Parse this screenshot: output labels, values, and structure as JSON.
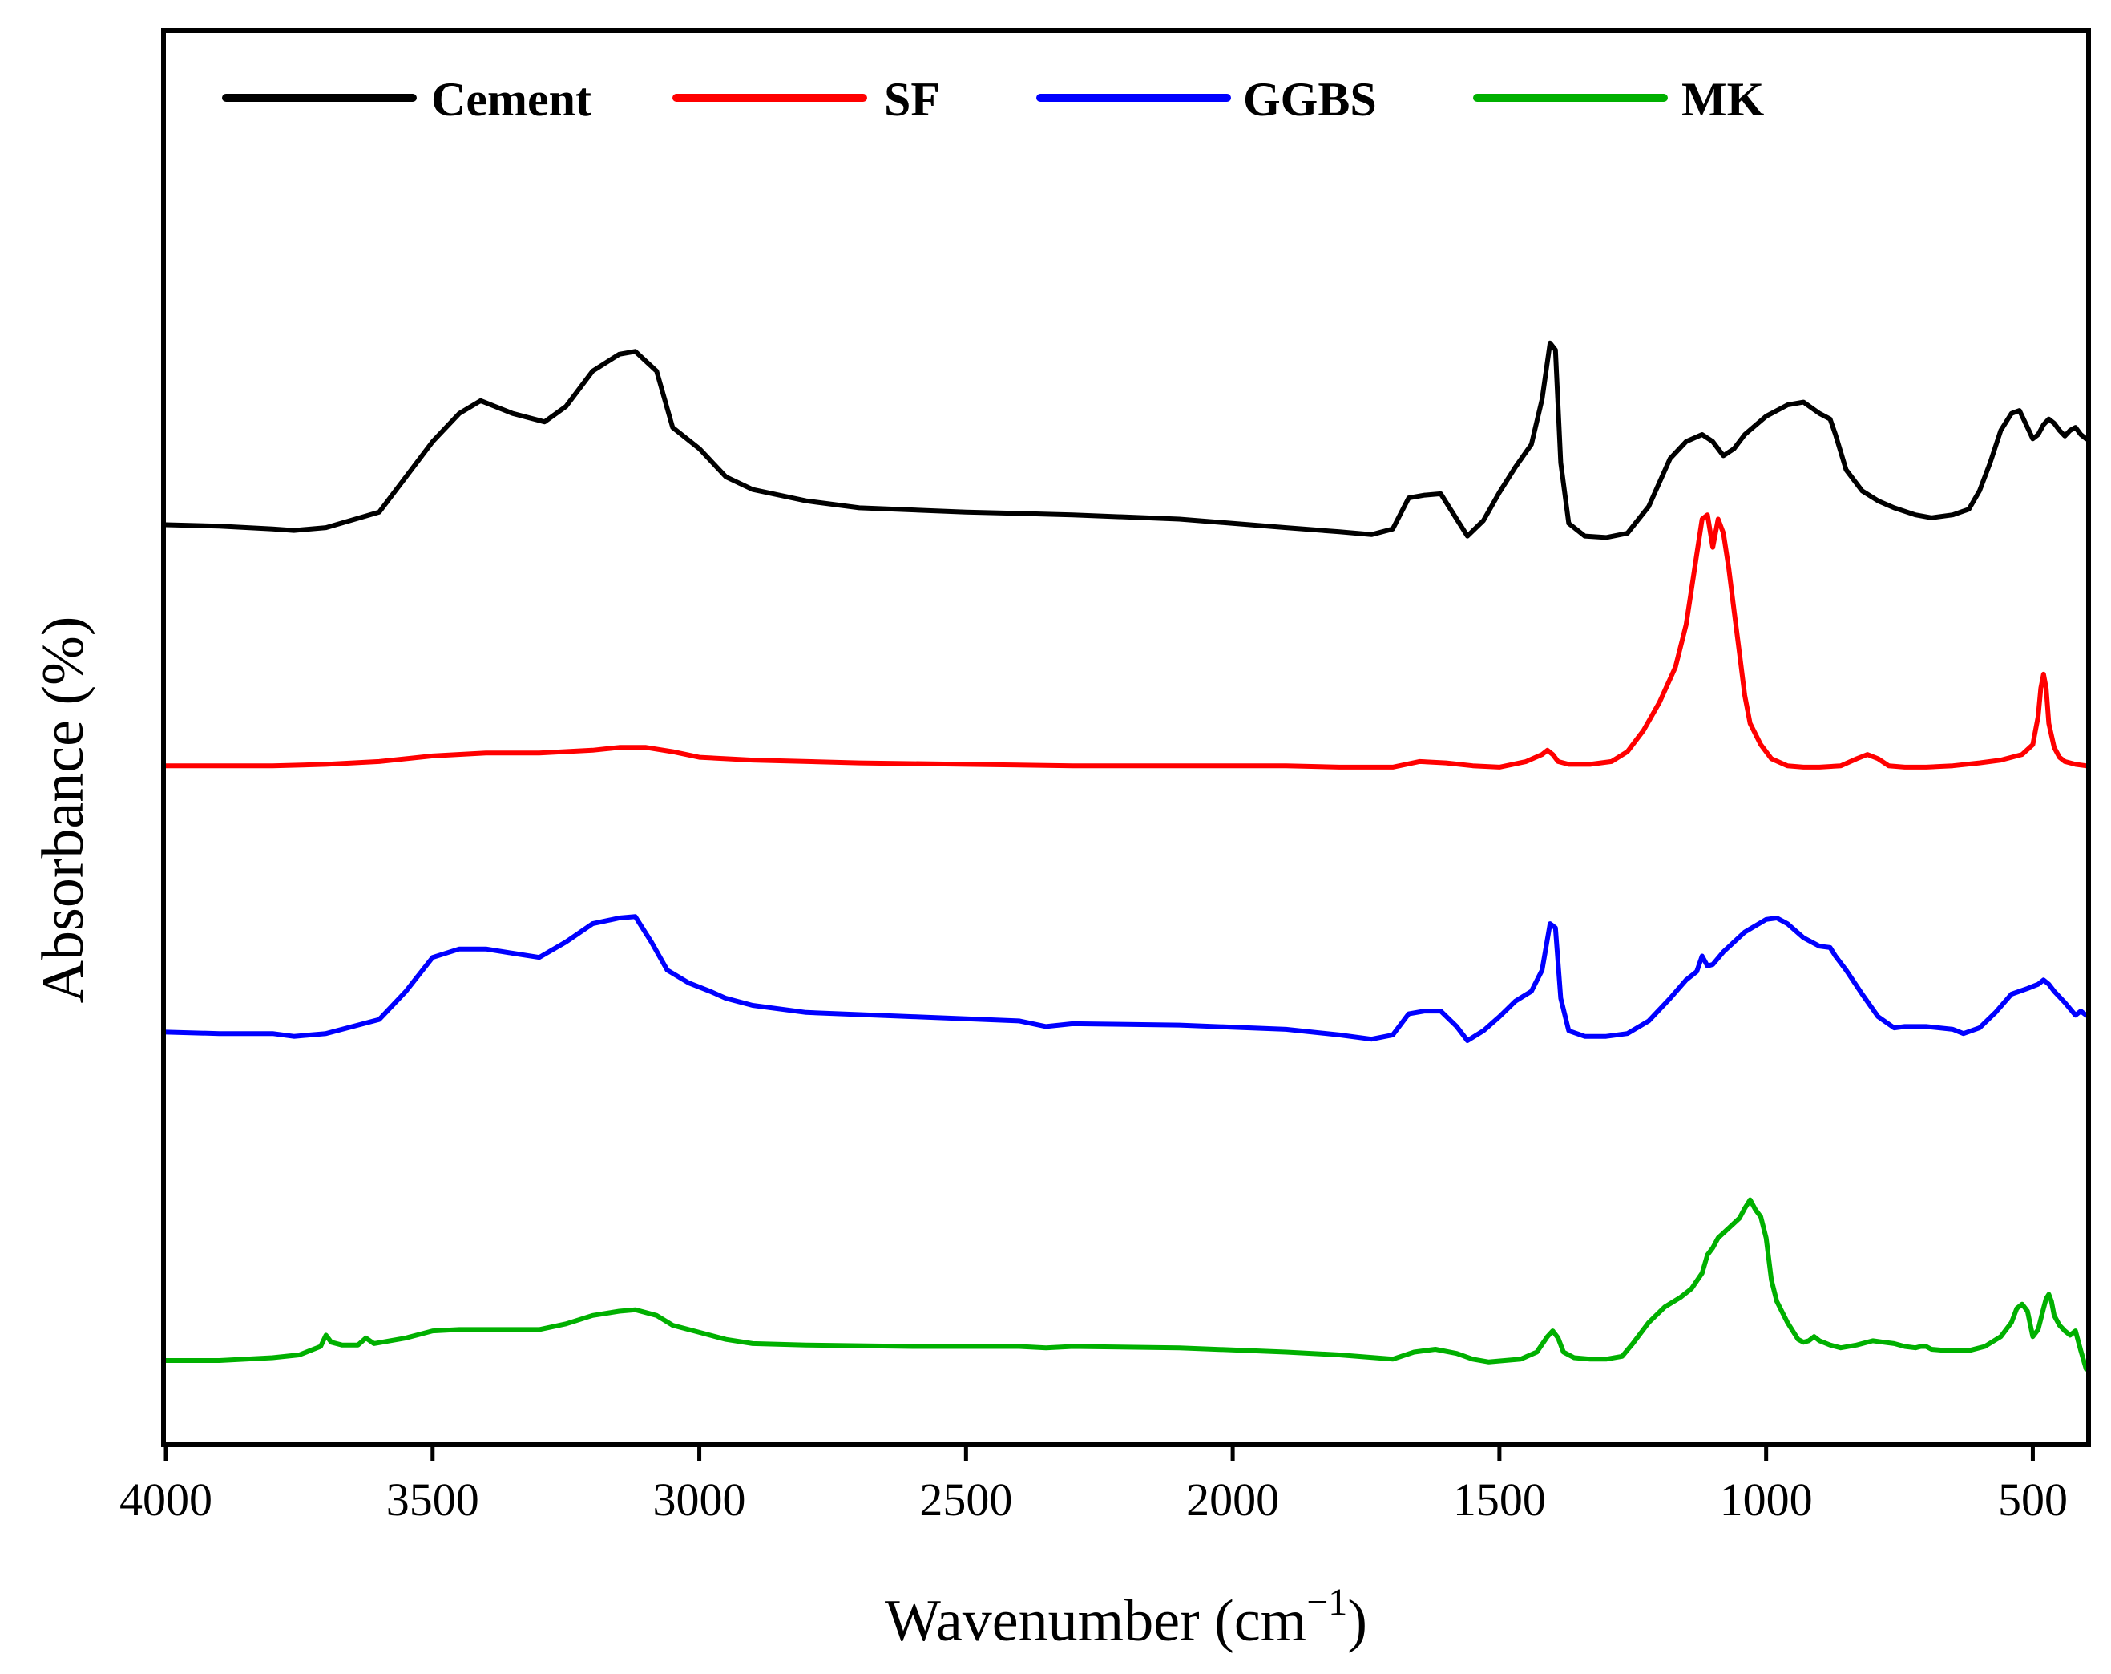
{
  "chart_data": {
    "type": "line",
    "title": "",
    "xlabel": "Wavenumber (cm",
    "xlabel_sup": "−1",
    "xlabel_close": ")",
    "ylabel": "Absorbance (%)",
    "xlim": [
      4000,
      400
    ],
    "ylim": [
      0,
      100
    ],
    "x_ticks": [
      4000,
      3500,
      3000,
      2500,
      2000,
      1500,
      1000,
      500
    ],
    "x_tick_labels": [
      "4000",
      "3500",
      "3000",
      "2500",
      "2000",
      "1500",
      "1000",
      "500"
    ],
    "y_ticks_visible": false,
    "grid": false,
    "legend_position": "top",
    "series": [
      {
        "name": "Cement",
        "color": "#000000",
        "x": [
          4000,
          3900,
          3800,
          3760,
          3700,
          3600,
          3550,
          3500,
          3450,
          3410,
          3350,
          3290,
          3250,
          3200,
          3150,
          3120,
          3080,
          3050,
          3000,
          2950,
          2900,
          2800,
          2700,
          2500,
          2300,
          2100,
          1900,
          1800,
          1740,
          1700,
          1670,
          1640,
          1610,
          1580,
          1560,
          1530,
          1500,
          1470,
          1440,
          1420,
          1405,
          1395,
          1385,
          1370,
          1340,
          1300,
          1260,
          1220,
          1180,
          1150,
          1120,
          1100,
          1080,
          1060,
          1040,
          1000,
          960,
          930,
          900,
          880,
          870,
          850,
          820,
          790,
          760,
          720,
          690,
          650,
          620,
          600,
          580,
          560,
          540,
          525,
          510,
          500,
          490,
          480,
          470,
          460,
          450,
          440,
          430,
          420,
          410,
          400
        ],
        "y": [
          65.1,
          65.0,
          64.8,
          64.7,
          64.9,
          66.0,
          68.5,
          71.0,
          73.0,
          73.9,
          73.0,
          72.4,
          73.5,
          76.0,
          77.2,
          77.4,
          76.0,
          72.0,
          70.5,
          68.5,
          67.6,
          66.8,
          66.3,
          66.0,
          65.8,
          65.5,
          64.9,
          64.6,
          64.4,
          64.8,
          67.0,
          67.2,
          67.3,
          65.5,
          64.3,
          65.4,
          67.4,
          69.2,
          70.8,
          74.0,
          78.0,
          77.5,
          69.5,
          65.2,
          64.3,
          64.2,
          64.5,
          66.4,
          69.8,
          71.0,
          71.5,
          71.0,
          70.0,
          70.5,
          71.5,
          72.8,
          73.6,
          73.8,
          73.0,
          72.6,
          71.5,
          69.0,
          67.5,
          66.8,
          66.3,
          65.8,
          65.6,
          65.8,
          66.2,
          67.5,
          69.5,
          71.8,
          73.0,
          73.2,
          72.0,
          71.2,
          71.5,
          72.2,
          72.6,
          72.3,
          71.8,
          71.4,
          71.8,
          72.0,
          71.5,
          71.2
        ]
      },
      {
        "name": "SF",
        "color": "#ff0000",
        "x": [
          4000,
          3800,
          3700,
          3600,
          3500,
          3400,
          3300,
          3200,
          3150,
          3100,
          3050,
          3000,
          2900,
          2700,
          2500,
          2300,
          2100,
          1900,
          1800,
          1700,
          1650,
          1600,
          1550,
          1500,
          1450,
          1420,
          1410,
          1400,
          1390,
          1370,
          1330,
          1290,
          1260,
          1230,
          1200,
          1170,
          1150,
          1140,
          1130,
          1120,
          1110,
          1100,
          1090,
          1080,
          1070,
          1060,
          1050,
          1040,
          1030,
          1010,
          990,
          960,
          930,
          900,
          860,
          830,
          810,
          790,
          770,
          740,
          700,
          650,
          600,
          560,
          520,
          500,
          490,
          485,
          480,
          475,
          470,
          460,
          450,
          440,
          420,
          400
        ],
        "y": [
          48.0,
          48.0,
          48.1,
          48.3,
          48.7,
          48.9,
          48.9,
          49.1,
          49.3,
          49.3,
          49.0,
          48.6,
          48.4,
          48.2,
          48.1,
          48.0,
          48.0,
          48.0,
          47.9,
          47.9,
          48.3,
          48.2,
          48.0,
          47.9,
          48.3,
          48.8,
          49.1,
          48.8,
          48.3,
          48.1,
          48.1,
          48.3,
          49.0,
          50.5,
          52.5,
          55.0,
          58.0,
          60.5,
          63.0,
          65.5,
          65.8,
          63.5,
          65.5,
          64.5,
          62.0,
          59.0,
          56.0,
          53.0,
          51.0,
          49.5,
          48.5,
          48.0,
          47.9,
          47.9,
          48.0,
          48.5,
          48.8,
          48.5,
          48.0,
          47.9,
          47.9,
          48.0,
          48.2,
          48.4,
          48.8,
          49.5,
          51.5,
          53.5,
          54.5,
          53.5,
          51.0,
          49.3,
          48.6,
          48.3,
          48.1,
          48.0
        ]
      },
      {
        "name": "GGBS",
        "color": "#0000ff",
        "x": [
          4000,
          3900,
          3800,
          3760,
          3700,
          3600,
          3550,
          3500,
          3450,
          3400,
          3350,
          3300,
          3250,
          3200,
          3150,
          3120,
          3090,
          3060,
          3020,
          2980,
          2950,
          2900,
          2800,
          2600,
          2400,
          2350,
          2300,
          2100,
          1900,
          1800,
          1740,
          1700,
          1670,
          1640,
          1610,
          1580,
          1560,
          1530,
          1500,
          1470,
          1440,
          1420,
          1405,
          1395,
          1385,
          1370,
          1340,
          1300,
          1260,
          1220,
          1180,
          1150,
          1130,
          1120,
          1110,
          1100,
          1080,
          1040,
          1000,
          980,
          960,
          930,
          900,
          880,
          870,
          850,
          820,
          790,
          760,
          740,
          700,
          650,
          630,
          600,
          570,
          540,
          510,
          490,
          480,
          470,
          460,
          440,
          420,
          410,
          400
        ],
        "y": [
          29.1,
          29.0,
          29.0,
          28.8,
          29.0,
          30.0,
          32.0,
          34.4,
          35.0,
          35.0,
          34.7,
          34.4,
          35.5,
          36.8,
          37.2,
          37.3,
          35.5,
          33.5,
          32.6,
          32.0,
          31.5,
          31.0,
          30.5,
          30.2,
          29.9,
          29.5,
          29.7,
          29.6,
          29.3,
          28.9,
          28.6,
          28.9,
          30.4,
          30.6,
          30.6,
          29.5,
          28.5,
          29.2,
          30.2,
          31.3,
          32.0,
          33.5,
          36.8,
          36.5,
          31.5,
          29.2,
          28.8,
          28.8,
          29.0,
          29.9,
          31.5,
          32.8,
          33.4,
          34.5,
          33.8,
          33.9,
          34.8,
          36.2,
          37.1,
          37.2,
          36.8,
          35.8,
          35.2,
          35.1,
          34.5,
          33.5,
          31.8,
          30.2,
          29.4,
          29.5,
          29.5,
          29.3,
          29.0,
          29.4,
          30.5,
          31.8,
          32.2,
          32.5,
          32.8,
          32.5,
          32.0,
          31.2,
          30.3,
          30.6,
          30.3
        ]
      },
      {
        "name": "MK",
        "color": "#00b000",
        "x": [
          4000,
          3900,
          3800,
          3750,
          3710,
          3700,
          3690,
          3670,
          3640,
          3625,
          3610,
          3550,
          3500,
          3450,
          3400,
          3350,
          3300,
          3250,
          3200,
          3150,
          3120,
          3080,
          3050,
          3000,
          2950,
          2900,
          2800,
          2600,
          2400,
          2350,
          2300,
          2100,
          1900,
          1800,
          1700,
          1660,
          1620,
          1580,
          1550,
          1520,
          1490,
          1460,
          1430,
          1410,
          1400,
          1390,
          1380,
          1360,
          1330,
          1300,
          1270,
          1250,
          1220,
          1190,
          1160,
          1140,
          1120,
          1110,
          1100,
          1090,
          1070,
          1050,
          1040,
          1030,
          1020,
          1010,
          1000,
          990,
          980,
          960,
          940,
          930,
          920,
          910,
          900,
          880,
          860,
          830,
          800,
          780,
          760,
          740,
          720,
          710,
          700,
          690,
          660,
          620,
          590,
          560,
          540,
          530,
          520,
          510,
          500,
          490,
          480,
          475,
          470,
          465,
          460,
          450,
          440,
          430,
          420,
          410,
          400
        ],
        "y": [
          5.8,
          5.8,
          6.0,
          6.2,
          6.8,
          7.6,
          7.1,
          6.9,
          6.9,
          7.4,
          7.0,
          7.4,
          7.9,
          8.0,
          8.0,
          8.0,
          8.0,
          8.4,
          9.0,
          9.3,
          9.4,
          9.0,
          8.3,
          7.8,
          7.3,
          7.0,
          6.9,
          6.8,
          6.8,
          6.7,
          6.8,
          6.7,
          6.4,
          6.2,
          5.9,
          6.4,
          6.6,
          6.3,
          5.9,
          5.7,
          5.8,
          5.9,
          6.4,
          7.5,
          7.9,
          7.4,
          6.4,
          6.0,
          5.9,
          5.9,
          6.1,
          7.0,
          8.5,
          9.6,
          10.3,
          10.9,
          12.0,
          13.3,
          13.8,
          14.5,
          15.2,
          15.9,
          16.6,
          17.2,
          16.5,
          16.0,
          14.5,
          11.5,
          10.0,
          8.5,
          7.3,
          7.1,
          7.2,
          7.5,
          7.2,
          6.9,
          6.7,
          6.9,
          7.2,
          7.1,
          7.0,
          6.8,
          6.7,
          6.8,
          6.8,
          6.6,
          6.5,
          6.5,
          6.8,
          7.5,
          8.5,
          9.5,
          9.8,
          9.3,
          7.5,
          8.0,
          9.5,
          10.2,
          10.5,
          10.0,
          9.0,
          8.3,
          7.9,
          7.6,
          7.9,
          6.5,
          5.2
        ]
      }
    ]
  }
}
